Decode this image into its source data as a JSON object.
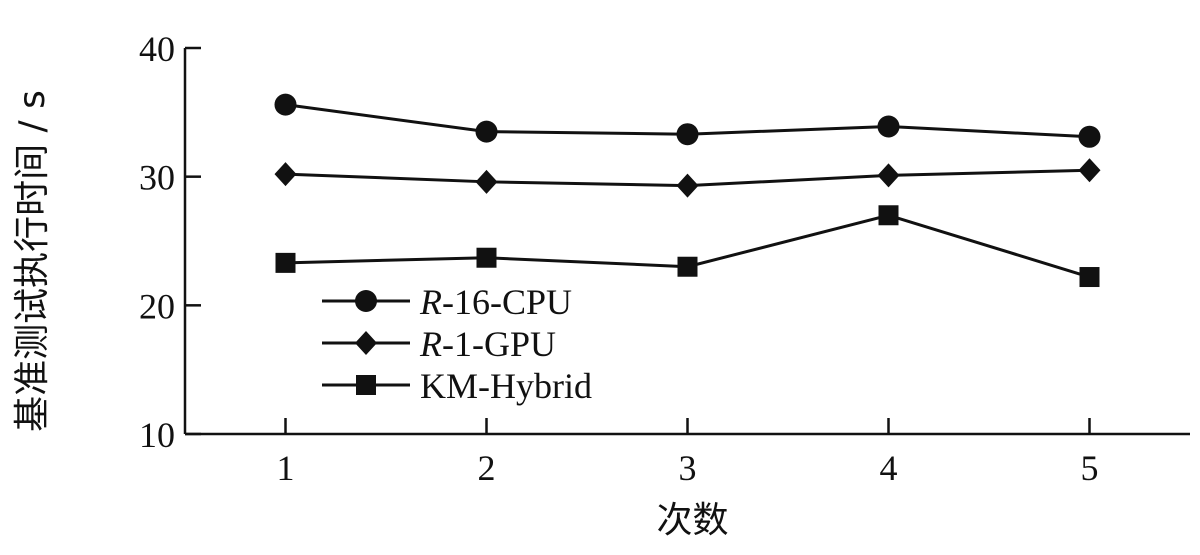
{
  "chart_data": {
    "type": "line",
    "xlabel": "次数",
    "ylabel": "基准测试执行时间 / s",
    "x": [
      1,
      2,
      3,
      4,
      5
    ],
    "xticks": [
      "1",
      "2",
      "3",
      "4",
      "5"
    ],
    "yticks": [
      "10",
      "20",
      "30",
      "40"
    ],
    "ylim": [
      10,
      40
    ],
    "xlim": [
      0.5,
      5.5
    ],
    "grid": false,
    "legend_position": "bottom-left",
    "series": [
      {
        "name_prefix": "R",
        "name_suffix": "-16-CPU",
        "name": "R-16-CPU",
        "marker": "circle",
        "values": [
          35.6,
          33.5,
          33.3,
          33.9,
          33.1
        ]
      },
      {
        "name_prefix": "R",
        "name_suffix": "-1-GPU",
        "name": "R-1-GPU",
        "marker": "diamond",
        "values": [
          30.2,
          29.6,
          29.3,
          30.1,
          30.5
        ]
      },
      {
        "name_prefix": "",
        "name_suffix": "KM-Hybrid",
        "name": "KM-Hybrid",
        "marker": "square",
        "values": [
          23.3,
          23.7,
          23.0,
          27.0,
          22.2
        ]
      }
    ]
  }
}
